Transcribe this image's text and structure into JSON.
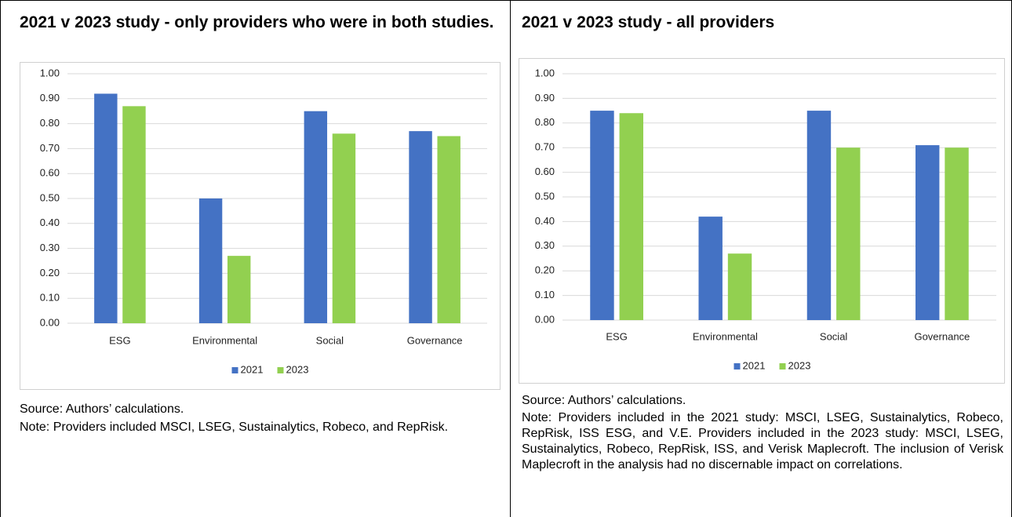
{
  "chart_data": [
    {
      "type": "bar",
      "title": "2021 v 2023 study - only providers who were in both studies.",
      "categories": [
        "ESG",
        "Environmental",
        "Social",
        "Governance"
      ],
      "series": [
        {
          "name": "2021",
          "color": "#4472c4",
          "values": [
            0.92,
            0.5,
            0.85,
            0.77
          ]
        },
        {
          "name": "2023",
          "color": "#92d050",
          "values": [
            0.87,
            0.27,
            0.76,
            0.75
          ]
        }
      ],
      "ylim": [
        0,
        1
      ],
      "yticks": [
        {
          "value": 0,
          "label": "0.00"
        },
        {
          "value": 0.1,
          "label": "0.10"
        },
        {
          "value": 0.2,
          "label": "0.20"
        },
        {
          "value": 0.3,
          "label": "0.30"
        },
        {
          "value": 0.4,
          "label": "0.40"
        },
        {
          "value": 0.5,
          "label": "0.50"
        },
        {
          "value": 0.6,
          "label": "0.60"
        },
        {
          "value": 0.7,
          "label": "0.70"
        },
        {
          "value": 0.8,
          "label": "0.80"
        },
        {
          "value": 0.9,
          "label": "0.90"
        },
        {
          "value": 1,
          "label": "1.00"
        }
      ],
      "grid": true,
      "legend": "bottom",
      "source": "Source: Authors’ calculations.",
      "note": "Note: Providers included MSCI, LSEG, Sustainalytics, Robeco, and RepRisk."
    },
    {
      "type": "bar",
      "title": "2021 v 2023 study - all providers",
      "categories": [
        "ESG",
        "Environmental",
        "Social",
        "Governance"
      ],
      "series": [
        {
          "name": "2021",
          "color": "#4472c4",
          "values": [
            0.85,
            0.42,
            0.85,
            0.71
          ]
        },
        {
          "name": "2023",
          "color": "#92d050",
          "values": [
            0.84,
            0.27,
            0.7,
            0.7
          ]
        }
      ],
      "ylim": [
        0,
        1
      ],
      "yticks": [
        {
          "value": 0,
          "label": "0.00"
        },
        {
          "value": 0.1,
          "label": "0.10"
        },
        {
          "value": 0.2,
          "label": "0.20"
        },
        {
          "value": 0.3,
          "label": "0.30"
        },
        {
          "value": 0.4,
          "label": "0.40"
        },
        {
          "value": 0.5,
          "label": "0.50"
        },
        {
          "value": 0.6,
          "label": "0.60"
        },
        {
          "value": 0.7,
          "label": "0.70"
        },
        {
          "value": 0.8,
          "label": "0.80"
        },
        {
          "value": 0.9,
          "label": "0.90"
        },
        {
          "value": 1,
          "label": "1.00"
        }
      ],
      "grid": true,
      "legend": "bottom",
      "source": "Source: Authors’ calculations.",
      "note": "Note: Providers included in the 2021 study: MSCI, LSEG, Sustainalytics, Robeco, RepRisk, ISS ESG, and V.E. Providers included in the 2023 study: MSCI, LSEG, Sustainalytics, Robeco, RepRisk, ISS, and Verisk Maplecroft. The inclusion of Verisk Maplecroft in the analysis had no discernable impact on correlations."
    }
  ]
}
